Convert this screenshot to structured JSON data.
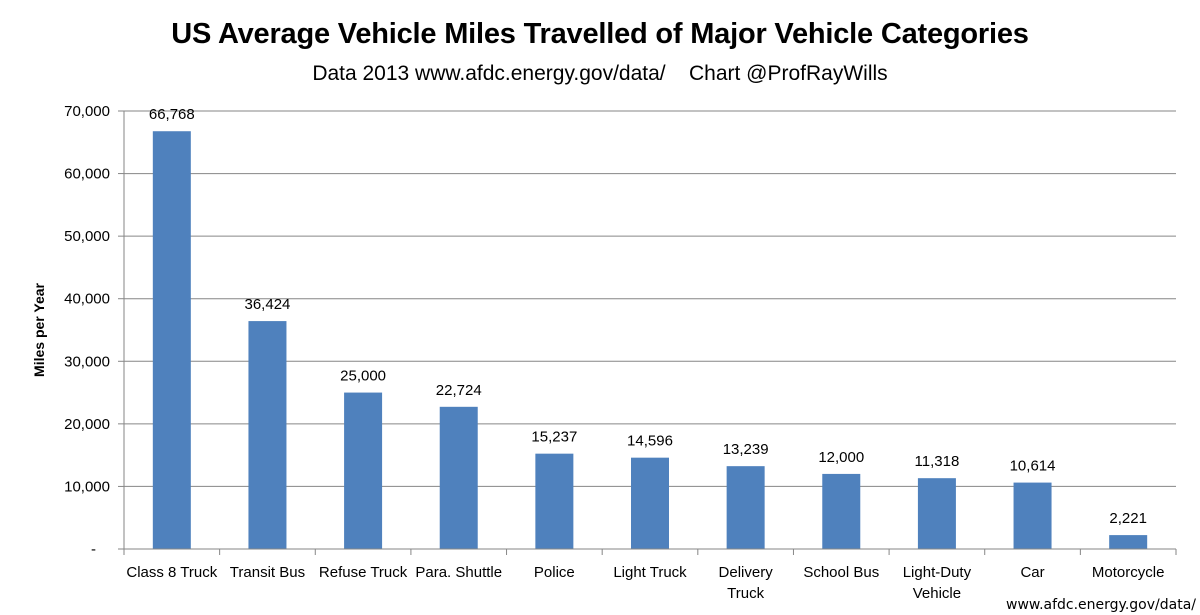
{
  "chart_data": {
    "type": "bar",
    "title": "US Average Vehicle Miles Travelled of Major Vehicle Categories",
    "subtitle": "Data 2013 www.afdc.energy.gov/data/    Chart @ProfRayWills",
    "xlabel": "",
    "ylabel": "Miles per Year",
    "ylim": [
      0,
      70000
    ],
    "yticks": [
      0,
      10000,
      20000,
      30000,
      40000,
      50000,
      60000,
      70000
    ],
    "ytick_labels": [
      "-",
      "10,000",
      "20,000",
      "30,000",
      "40,000",
      "50,000",
      "60,000",
      "70,000"
    ],
    "grid": true,
    "categories": [
      "Class 8 Truck",
      "Transit Bus",
      "Refuse Truck",
      "Para. Shuttle",
      "Police",
      "Light Truck",
      "Delivery Truck",
      "School Bus",
      "Light-Duty Vehicle",
      "Car",
      "Motorcycle"
    ],
    "category_lines": [
      [
        "Class 8 Truck"
      ],
      [
        "Transit Bus"
      ],
      [
        "Refuse Truck"
      ],
      [
        "Para. Shuttle"
      ],
      [
        "Police"
      ],
      [
        "Light Truck"
      ],
      [
        "Delivery",
        "Truck"
      ],
      [
        "School Bus"
      ],
      [
        "Light-Duty",
        "Vehicle"
      ],
      [
        "Car"
      ],
      [
        "Motorcycle"
      ]
    ],
    "values": [
      66768,
      36424,
      25000,
      22724,
      15237,
      14596,
      13239,
      12000,
      11318,
      10614,
      2221
    ],
    "data_labels": [
      "66,768",
      "36,424",
      "25,000",
      "22,724",
      "15,237",
      "14,596",
      "13,239",
      "12,000",
      "11,318",
      "10,614",
      "2,221"
    ],
    "bar_color": "#4f81bd",
    "grid_color": "#868686"
  },
  "source_note": "www.afdc.energy.gov/data/"
}
